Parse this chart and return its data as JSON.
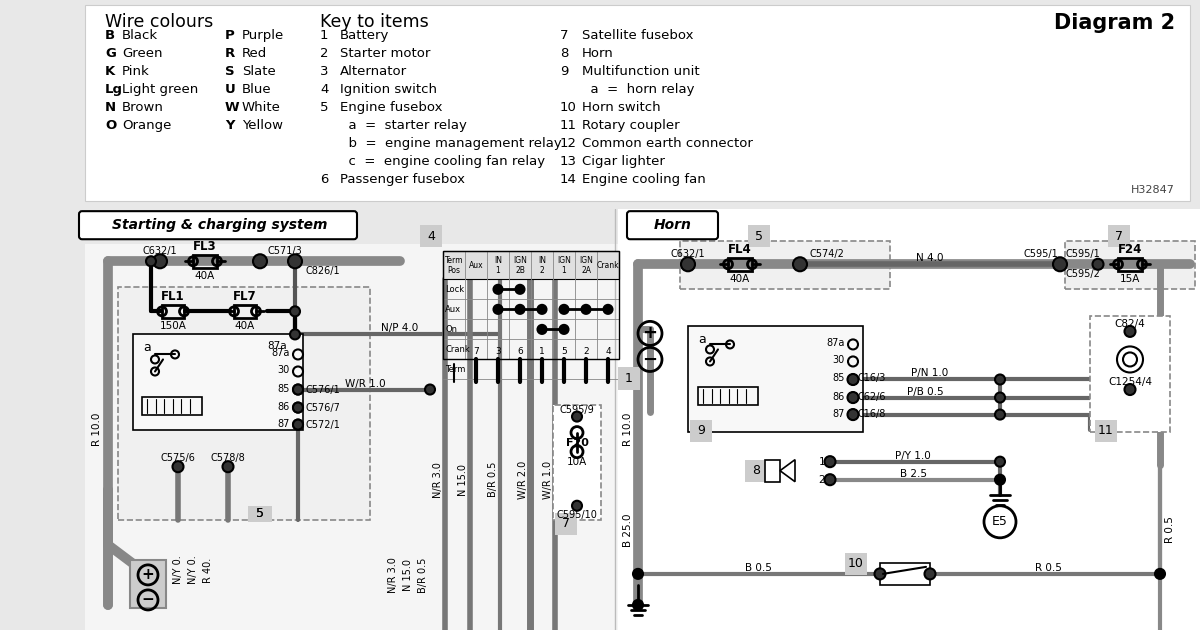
{
  "title": "Diagram 2",
  "bg_top": "#e8e8e8",
  "bg_bottom": "#f5f5f5",
  "wire_colours_title": "Wire colours",
  "key_items_title": "Key to items",
  "wire_colours": [
    [
      "B",
      "Black",
      "P",
      "Purple"
    ],
    [
      "G",
      "Green",
      "R",
      "Red"
    ],
    [
      "K",
      "Pink",
      "S",
      "Slate"
    ],
    [
      "Lg",
      "Light green",
      "U",
      "Blue"
    ],
    [
      "N",
      "Brown",
      "W",
      "White"
    ],
    [
      "O",
      "Orange",
      "Y",
      "Yellow"
    ]
  ],
  "key_items_col1": [
    [
      "1",
      "Battery"
    ],
    [
      "2",
      "Starter motor"
    ],
    [
      "3",
      "Alternator"
    ],
    [
      "4",
      "Ignition switch"
    ],
    [
      "5",
      "Engine fusebox"
    ],
    [
      "",
      "  a  =  starter relay"
    ],
    [
      "",
      "  b  =  engine management relay"
    ],
    [
      "",
      "  c  =  engine cooling fan relay"
    ],
    [
      "6",
      "Passenger fusebox"
    ]
  ],
  "key_items_col2": [
    [
      "7",
      "Satellite fusebox"
    ],
    [
      "8",
      "Horn"
    ],
    [
      "9",
      "Multifunction unit"
    ],
    [
      "",
      "  a  =  horn relay"
    ],
    [
      "10",
      "Horn switch"
    ],
    [
      "11",
      "Rotary coupler"
    ],
    [
      "12",
      "Common earth connector"
    ],
    [
      "13",
      "Cigar lighter"
    ],
    [
      "14",
      "Engine cooling fan"
    ]
  ],
  "ref_code": "H32847",
  "section1_title": "Starting & charging system",
  "section2_title": "Horn"
}
